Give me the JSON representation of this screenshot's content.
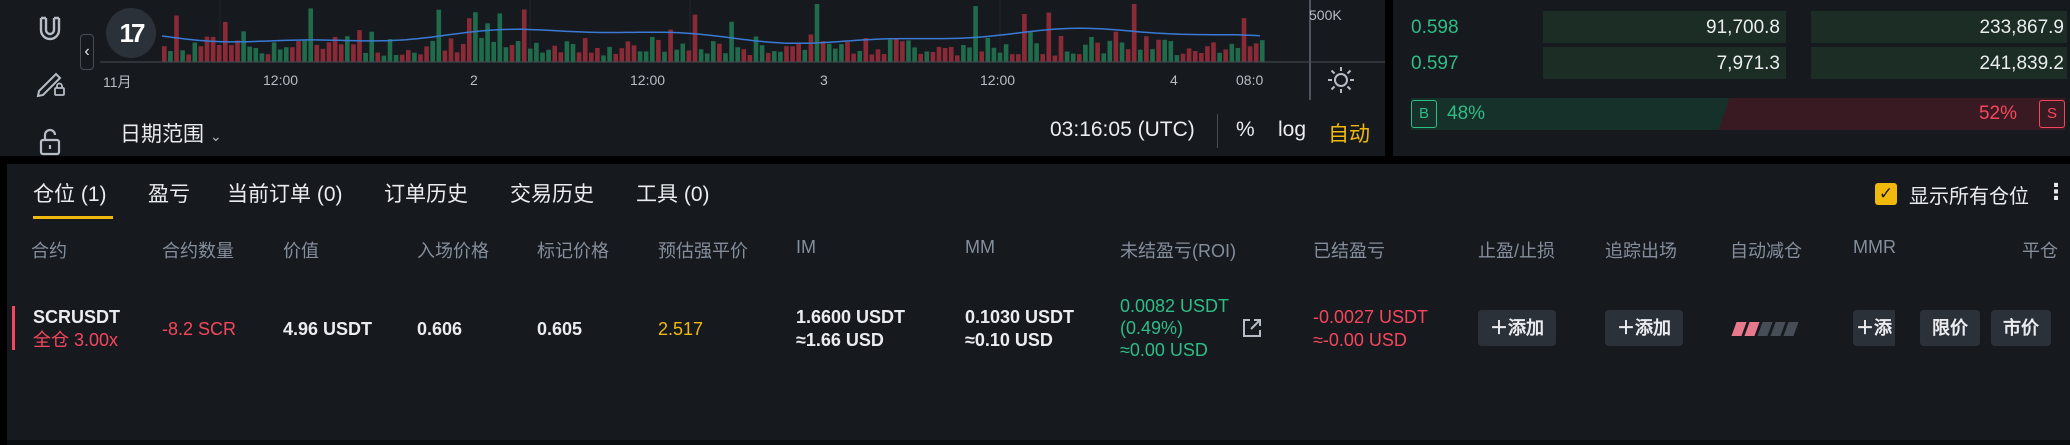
{
  "chart": {
    "y_label": "500K",
    "x_ticks": [
      "11月",
      "12:00",
      "2",
      "12:00",
      "3",
      "12:00",
      "4"
    ],
    "x_tick_cut": "08:0",
    "date_range_label": "日期范围",
    "clock": "03:16:05 (UTC)",
    "percent_label": "%",
    "log_label": "log",
    "auto_label": "自动",
    "logo_text": "17"
  },
  "order_book": {
    "rows": [
      {
        "price": "0.598",
        "amount": "91,700.8",
        "total": "233,867.9"
      },
      {
        "price": "0.597",
        "amount": "7,971.3",
        "total": "241,839.2"
      }
    ],
    "buy_badge": "B",
    "buy_pct": "48%",
    "sell_pct": "52%",
    "sell_badge": "S",
    "buy_ratio": 0.48
  },
  "positions": {
    "tabs": [
      "仓位 (1)",
      "盈亏",
      "当前订单 (0)",
      "订单历史",
      "交易历史",
      "工具 (0)"
    ],
    "active_tab": 0,
    "show_all_label": "显示所有仓位",
    "show_all_checked_mark": "✓",
    "columns": [
      "合约",
      "合约数量",
      "价值",
      "入场价格",
      "标记价格",
      "预估强平价",
      "IM",
      "MM",
      "未结盈亏(ROI)",
      "已结盈亏",
      "止盈/止损",
      "追踪出场",
      "自动减仓",
      "MMR",
      "平仓"
    ],
    "row": {
      "symbol": "SCRUSDT",
      "margin_mode": "全仓 3.00x",
      "size": "-8.2 SCR",
      "value": "4.96 USDT",
      "entry_price": "0.606",
      "mark_price": "0.605",
      "liq_price": "2.517",
      "im_usdt": "1.6600 USDT",
      "im_usd": "≈1.66 USD",
      "mm_usdt": "0.1030 USDT",
      "mm_usd": "≈0.10 USD",
      "upnl_usdt": "0.0082 USDT",
      "upnl_roi": "(0.49%)",
      "upnl_usd": "≈0.00 USD",
      "rpnl_usdt": "-0.0027 USDT",
      "rpnl_usd": "≈-0.00 USD",
      "tpsl_button": "＋添加",
      "trailing_button": "＋添加",
      "mmr_button": "＋添",
      "limit_button": "限价",
      "market_button": "市价",
      "adl_level": 2
    }
  },
  "colors": {
    "green": "#2ebd85",
    "red": "#f6465d",
    "accent": "#f0b90b",
    "panel": "#161a1e"
  }
}
